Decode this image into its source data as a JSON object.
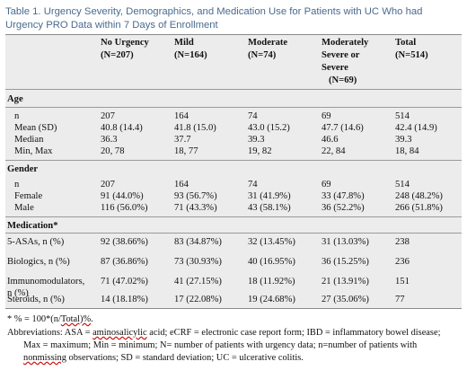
{
  "caption": "Table 1. Urgency Severity, Demographics, and Medication Use for Patients with UC Who had Urgency PRO Data within 7 Days of Enrollment",
  "columns": [
    {
      "line1": "No Urgency",
      "line2": "(N=207)"
    },
    {
      "line1": "Mild",
      "line2": "(N=164)"
    },
    {
      "line1": "Moderate",
      "line2": "(N=74)"
    },
    {
      "line1": "Moderately",
      "line2": "Severe or",
      "line3": "Severe",
      "line4": "(N=69)"
    },
    {
      "line1": "Total",
      "line2": "(N=514)"
    }
  ],
  "sections": {
    "age": "Age",
    "gender": "Gender",
    "medication": "Medication*"
  },
  "age_rows": [
    {
      "label": "n",
      "v": [
        "207",
        "164",
        "74",
        "69",
        "514"
      ]
    },
    {
      "label": "Mean (SD)",
      "v": [
        "40.8 (14.4)",
        "41.8 (15.0)",
        "43.0 (15.2)",
        "47.7 (14.6)",
        "42.4 (14.9)"
      ]
    },
    {
      "label": "Median",
      "v": [
        "36.3",
        "37.7",
        "39.3",
        "46.6",
        "39.3"
      ]
    },
    {
      "label": "Min, Max",
      "v": [
        "20, 78",
        "18, 77",
        "19, 82",
        "22, 84",
        "18, 84"
      ]
    }
  ],
  "gender_rows": [
    {
      "label": "n",
      "v": [
        "207",
        "164",
        "74",
        "69",
        "514"
      ]
    },
    {
      "label": "Female",
      "v": [
        "91 (44.0%)",
        "93 (56.7%)",
        "31 (41.9%)",
        "33 (47.8%)",
        "248 (48.2%)"
      ]
    },
    {
      "label": "Male",
      "v": [
        "116 (56.0%)",
        "71 (43.3%)",
        "43 (58.1%)",
        "36 (52.2%)",
        "266 (51.8%)"
      ]
    }
  ],
  "med_rows": [
    {
      "label": "5-ASAs, n (%)",
      "v": [
        "92 (38.66%)",
        "83 (34.87%)",
        "32 (13.45%)",
        "31 (13.03%)",
        "238"
      ]
    },
    {
      "label": "Biologics, n (%)",
      "v": [
        "87 (36.86%)",
        "73 (30.93%)",
        "40 (16.95%)",
        "36 (15.25%)",
        "236"
      ]
    },
    {
      "label": "Immunomodulators,",
      "label2": "n (%)",
      "v": [
        "71 (47.02%)",
        "41 (27.15%)",
        "18 (11.92%)",
        "21 (13.91%)",
        "151"
      ]
    },
    {
      "label": "Steroids, n (%)",
      "v": [
        "14 (18.18%)",
        "17 (22.08%)",
        "19 (24.68%)",
        "27 (35.06%)",
        "77"
      ]
    }
  ],
  "footnotes": {
    "pct_prefix": "* % = 100*(n/",
    "pct_link": "Total)%",
    "pct_suffix": ".",
    "abbr_1": "Abbreviations: ASA = ",
    "abbr_link1": "aminosalicylic",
    "abbr_2": " acid; eCRF = electronic case report form; IBD = inflammatory bowel disease;",
    "abbr_3": "Max = maximum; Min = minimum; N= number of patients with urgency data; n=number of patients with",
    "abbr_link2": "nonmissing",
    "abbr_4": " observations; SD = standard deviation; UC = ulcerative colitis."
  }
}
